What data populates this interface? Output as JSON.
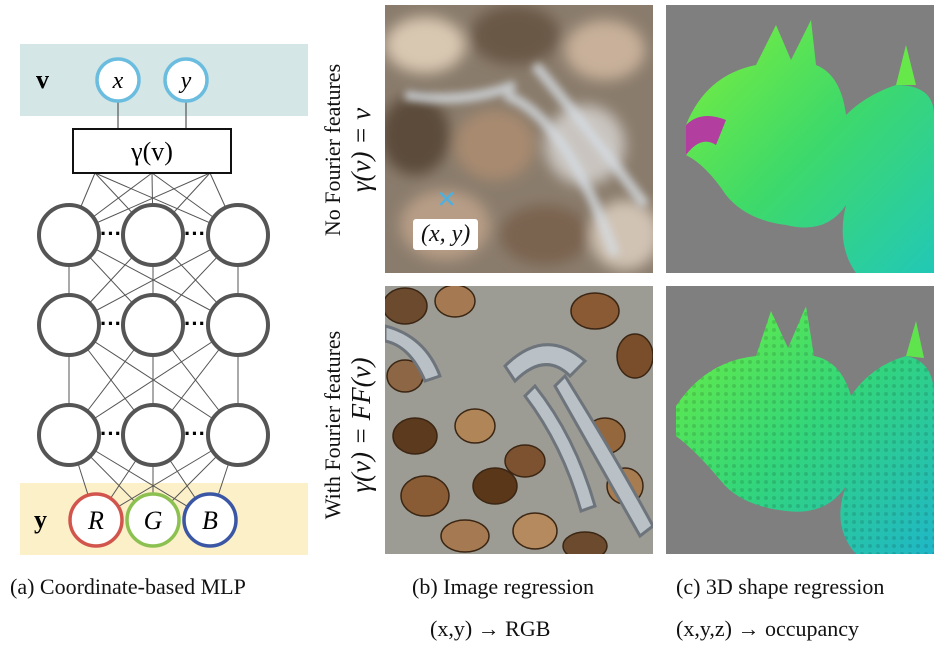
{
  "mlp": {
    "input_label": "v",
    "input_nodes": [
      "x",
      "y"
    ],
    "gamma_label": "γ(v)",
    "output_label": "y",
    "output_nodes": [
      "R",
      "G",
      "B"
    ],
    "dots": "···",
    "colors": {
      "input_band": "#d4e6e6",
      "output_band": "#fbf0c8",
      "input_node": "#6bbde0",
      "node_R": "#d2554d",
      "node_G": "#8cc152",
      "node_B": "#3a56a5",
      "hidden_node": "#555555"
    }
  },
  "rows": {
    "top": {
      "label": "No Fourier features",
      "formula": "γ(v) = v"
    },
    "bottom": {
      "label": "With Fourier features",
      "formula": "γ(v) = FF(v)"
    }
  },
  "image_panel": {
    "coord_label": "(x, y)",
    "marker": "×"
  },
  "captions": {
    "a": "(a) Coordinate-based MLP",
    "b": "(b) Image regression",
    "c": "(c) 3D shape regression"
  },
  "formulas": {
    "b": "(x,y) → RGB",
    "c": "(x,y,z) → occupancy"
  }
}
